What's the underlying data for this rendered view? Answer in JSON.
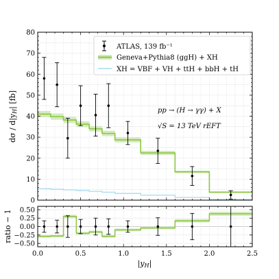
{
  "chart_data": [
    {
      "panel": "main",
      "type": "line",
      "xlim": [
        0.0,
        2.5
      ],
      "ylim": [
        0,
        80
      ],
      "ylabel": "dσ / d|y_H|  [fb]",
      "yticks": [
        "0",
        "10",
        "20",
        "30",
        "40",
        "50",
        "60",
        "70",
        "80"
      ],
      "grid": true,
      "legend_position": "top-right",
      "series": [
        {
          "name": "ATLAS, 139 fb⁻¹",
          "kind": "errorbar",
          "color": "#000000",
          "x": [
            0.075,
            0.225,
            0.35,
            0.5,
            0.675,
            0.825,
            1.05,
            1.4,
            1.8,
            2.25
          ],
          "y": [
            58.0,
            55.0,
            29.5,
            45.0,
            40.5,
            45.0,
            32.0,
            23.5,
            11.5,
            2.5
          ],
          "err": [
            10.0,
            10.5,
            9.5,
            9.5,
            10.0,
            10.5,
            5.5,
            6.0,
            4.5,
            2.0
          ],
          "xerr": [
            0.075,
            0.075,
            0.05,
            0.1,
            0.075,
            0.075,
            0.15,
            0.2,
            0.2,
            0.25
          ]
        },
        {
          "name": "Geneva+Pythia8 (ggH) + XH",
          "kind": "histogram",
          "color": "#8cc63f",
          "band_color": "#d4eac0",
          "edges": [
            0.0,
            0.15,
            0.3,
            0.45,
            0.6,
            0.75,
            0.9,
            1.2,
            1.6,
            2.0,
            2.5
          ],
          "values": [
            41.0,
            39.8,
            38.2,
            36.2,
            34.0,
            31.8,
            28.7,
            22.5,
            13.5,
            3.8
          ],
          "band_lo": [
            39.5,
            38.3,
            36.7,
            34.8,
            32.7,
            30.5,
            27.5,
            21.5,
            12.9,
            3.4
          ],
          "band_hi": [
            42.5,
            41.3,
            39.7,
            37.6,
            35.3,
            33.1,
            29.9,
            23.5,
            14.1,
            4.2
          ]
        },
        {
          "name": "XH = VBF + VH + ttH + bbH + tH",
          "kind": "histogram",
          "color": "#a6dcf0",
          "edges": [
            0.0,
            0.15,
            0.3,
            0.45,
            0.6,
            0.75,
            0.9,
            1.2,
            1.6,
            2.0,
            2.5
          ],
          "values": [
            5.5,
            5.2,
            4.9,
            4.6,
            4.2,
            3.8,
            3.2,
            2.4,
            1.3,
            0.4
          ]
        }
      ],
      "annotations": [
        "pp → (H → γγ) + X",
        "√S = 13 TeV    rEFT"
      ]
    },
    {
      "panel": "ratio",
      "type": "line",
      "xlim": [
        0.0,
        2.5
      ],
      "ylim": [
        -0.6,
        0.6
      ],
      "xlabel": "|y_H|",
      "ylabel": "ratio − 1",
      "yticks": [
        "0.50",
        "0.25",
        "0.00",
        "−0.25",
        "−0.50"
      ],
      "xticks": [
        "0.0",
        "0.5",
        "1.0",
        "1.5",
        "2.0",
        "2.5"
      ],
      "series": [
        {
          "name": "ATLAS, 139 fb⁻¹",
          "kind": "errorbar",
          "x": [
            0.075,
            0.225,
            0.35,
            0.5,
            0.675,
            0.825,
            1.05,
            1.4,
            1.8,
            2.25
          ],
          "y": [
            0.0,
            0.0,
            0.0,
            0.0,
            0.0,
            0.0,
            0.0,
            0.0,
            0.0,
            0.0
          ],
          "err": [
            0.17,
            0.19,
            0.32,
            0.21,
            0.25,
            0.23,
            0.17,
            0.26,
            0.39,
            0.8
          ],
          "xerr": [
            0.075,
            0.075,
            0.05,
            0.1,
            0.075,
            0.075,
            0.15,
            0.2,
            0.2,
            0.25
          ]
        },
        {
          "name": "Geneva+Pythia8 (ggH) + XH",
          "kind": "histogram",
          "edges": [
            0.0,
            0.15,
            0.3,
            0.45,
            0.6,
            0.75,
            0.9,
            1.2,
            1.6,
            2.0,
            2.5
          ],
          "values": [
            -0.29,
            -0.28,
            0.3,
            -0.2,
            -0.16,
            -0.29,
            -0.1,
            -0.04,
            0.17,
            0.38
          ],
          "band_lo": [
            -0.33,
            -0.32,
            0.25,
            -0.24,
            -0.2,
            -0.33,
            -0.14,
            -0.08,
            0.12,
            0.32
          ],
          "band_hi": [
            -0.25,
            -0.24,
            0.35,
            -0.16,
            -0.12,
            -0.25,
            -0.06,
            0.0,
            0.22,
            0.44
          ]
        }
      ]
    }
  ]
}
